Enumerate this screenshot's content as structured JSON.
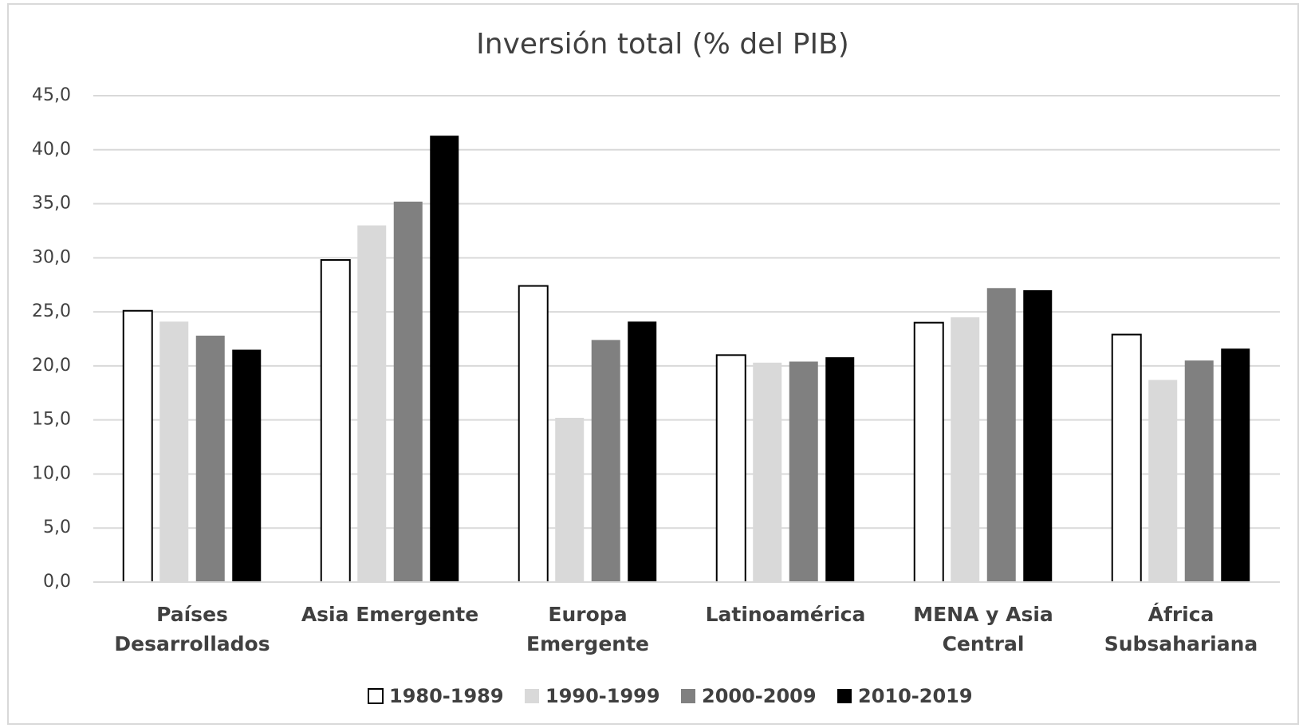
{
  "chart_data": {
    "type": "bar",
    "title": "Inversión total (% del PIB)",
    "categories": [
      "Países\nDesarrollados",
      "Asia Emergente",
      "Europa\nEmergente",
      "Latinoamérica",
      "MENA y Asia\nCentral",
      "África\nSubsahariana"
    ],
    "series": [
      {
        "name": "1980-1989",
        "color": "#ffffff",
        "values": [
          25.1,
          29.8,
          27.4,
          21.0,
          24.0,
          22.9
        ]
      },
      {
        "name": "1990-1999",
        "color": "#d9d9d9",
        "values": [
          24.1,
          33.0,
          15.2,
          20.3,
          24.5,
          18.7
        ]
      },
      {
        "name": "2000-2009",
        "color": "#808080",
        "values": [
          22.8,
          35.2,
          22.4,
          20.4,
          27.2,
          20.5
        ]
      },
      {
        "name": "2010-2019",
        "color": "#000000",
        "values": [
          21.5,
          41.3,
          24.1,
          20.8,
          27.0,
          21.6
        ]
      }
    ],
    "ylim": [
      0,
      45
    ],
    "yticks": [
      {
        "value": 0,
        "label": "0,0"
      },
      {
        "value": 5,
        "label": "5,0"
      },
      {
        "value": 10,
        "label": "10,0"
      },
      {
        "value": 15,
        "label": "15,0"
      },
      {
        "value": 20,
        "label": "20,0"
      },
      {
        "value": 25,
        "label": "25,0"
      },
      {
        "value": 30,
        "label": "30,0"
      },
      {
        "value": 35,
        "label": "35,0"
      },
      {
        "value": 40,
        "label": "40,0"
      },
      {
        "value": 45,
        "label": "45,0"
      }
    ],
    "grid": true,
    "legend": "bottom"
  }
}
